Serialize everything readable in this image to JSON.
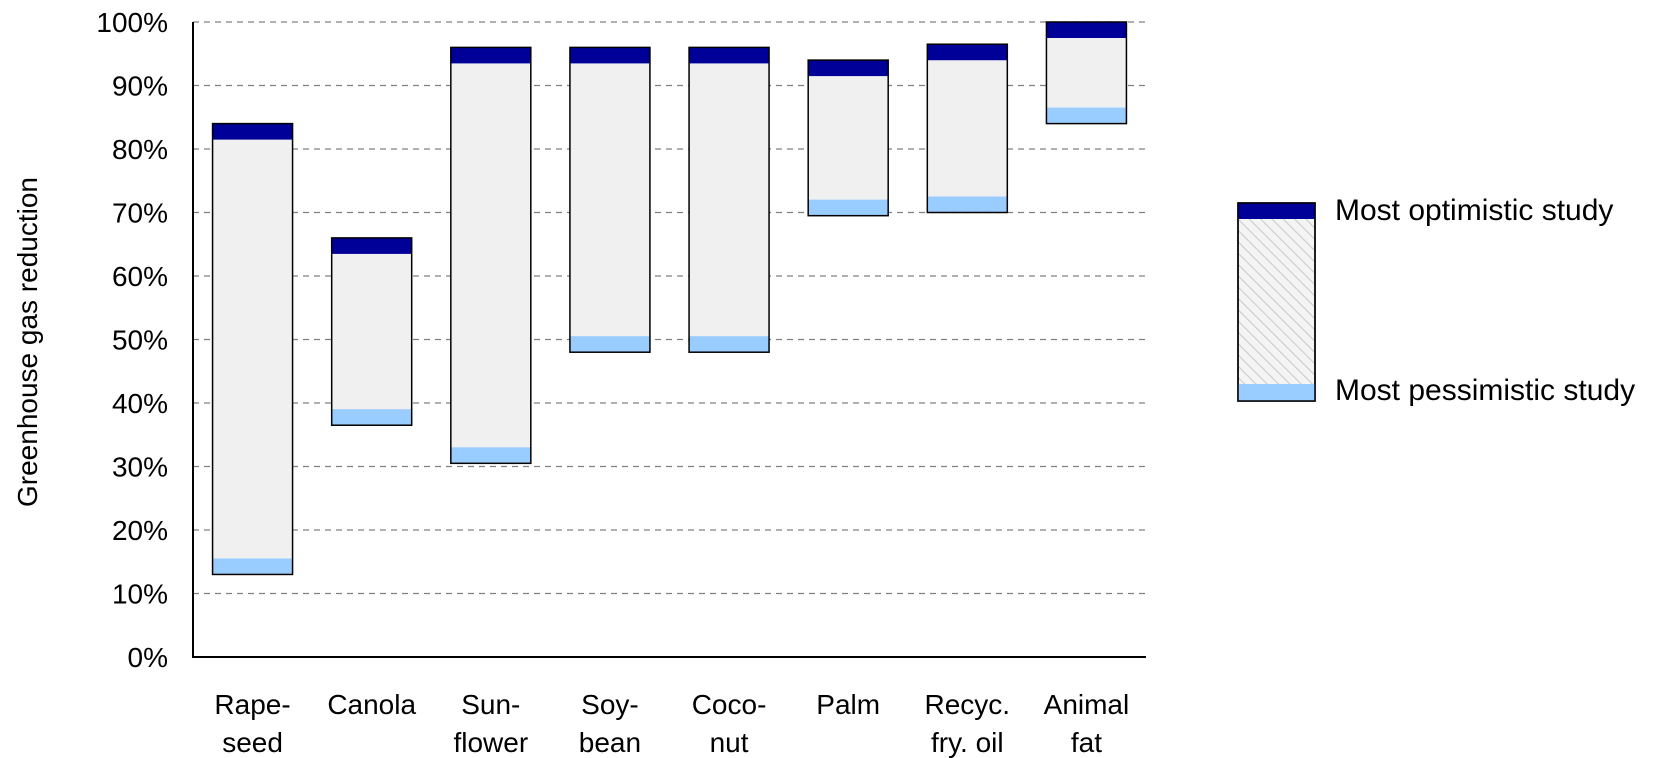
{
  "chart_data": {
    "type": "bar",
    "subtype": "floating-range",
    "title": "",
    "xlabel": "",
    "ylabel": "Greenhouse gas reduction",
    "ylim": [
      0,
      100
    ],
    "yticks": [
      "0%",
      "10%",
      "20%",
      "30%",
      "40%",
      "50%",
      "60%",
      "70%",
      "80%",
      "90%",
      "100%"
    ],
    "grid": "horizontal-dashed",
    "legend_position": "right",
    "categories": [
      [
        "Rape-",
        "seed"
      ],
      [
        "Canola"
      ],
      [
        "Sun-",
        "flower"
      ],
      [
        "Soy-",
        "bean"
      ],
      [
        "Coco-",
        "nut"
      ],
      [
        "Palm"
      ],
      [
        "Recyc.",
        "fry. oil"
      ],
      [
        "Animal",
        "fat"
      ]
    ],
    "series": [
      {
        "name": "Most pessimistic study",
        "values": [
          13,
          36.5,
          30.5,
          48,
          48,
          69.5,
          70,
          84
        ]
      },
      {
        "name": "Most optimistic study",
        "values": [
          84,
          66,
          96,
          96,
          96,
          94,
          96.5,
          100
        ]
      }
    ],
    "colors": {
      "optimistic": "#000099",
      "pessimistic": "#99ccff",
      "range": "#f0f0f0",
      "outline": "#000000",
      "grid": "#808080"
    }
  }
}
